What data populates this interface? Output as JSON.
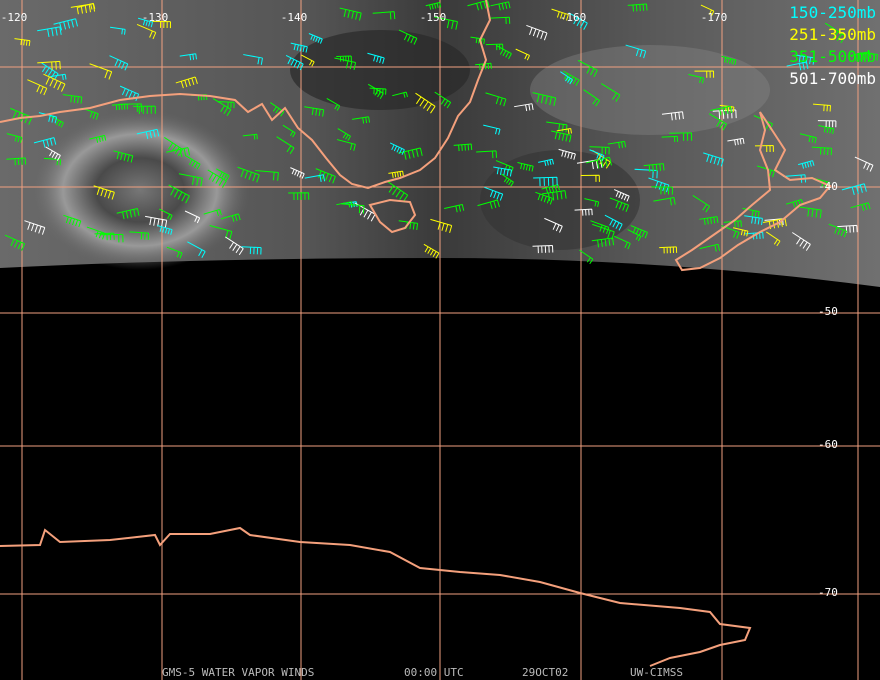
{
  "map": {
    "lon_labels": [
      "-120",
      "-130",
      "-140",
      "-150",
      "-160",
      "-170"
    ],
    "lat_labels": [
      "-40",
      "-50",
      "-60",
      "-70"
    ],
    "legend": [
      {
        "label": "150-250mb",
        "color": "#00ffff"
      },
      {
        "label": "251-350mb",
        "color": "#ffff00"
      },
      {
        "label": "351-500mb",
        "color": "#00ff00"
      },
      {
        "label": "501-700mb",
        "color": "#ffffff"
      }
    ],
    "footer": [
      "GMS-5 WATER VAPOR WINDS",
      "00:00 UTC",
      "29OCT02",
      "UW-CIMSS"
    ]
  }
}
